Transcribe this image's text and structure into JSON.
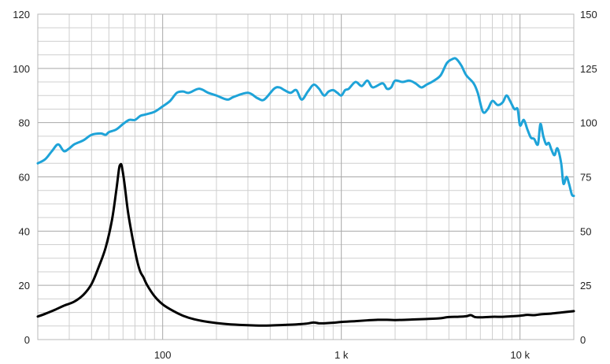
{
  "chart_data": {
    "type": "line",
    "x_scale": "log",
    "xlim": [
      20,
      20000
    ],
    "ylim_left": [
      0,
      120
    ],
    "ylim_right": [
      0,
      150
    ],
    "grid": true,
    "x_major_ticks": [
      {
        "value": 100,
        "label": "100"
      },
      {
        "value": 1000,
        "label": "1 k"
      },
      {
        "value": 10000,
        "label": "10 k"
      }
    ],
    "y_left_ticks": [
      {
        "value": 0,
        "label": "0"
      },
      {
        "value": 20,
        "label": "20"
      },
      {
        "value": 40,
        "label": "40"
      },
      {
        "value": 60,
        "label": "60"
      },
      {
        "value": 80,
        "label": "80"
      },
      {
        "value": 100,
        "label": "100"
      },
      {
        "value": 120,
        "label": "120"
      }
    ],
    "y_right_ticks": [
      {
        "value": 0,
        "label": "0"
      },
      {
        "value": 25,
        "label": "25"
      },
      {
        "value": 50,
        "label": "50"
      },
      {
        "value": 75,
        "label": "75"
      },
      {
        "value": 100,
        "label": "100"
      },
      {
        "value": 125,
        "label": "125"
      },
      {
        "value": 150,
        "label": "150"
      }
    ],
    "series": [
      {
        "color": "#1ea3d8",
        "axis": "left",
        "points": [
          [
            20,
            65
          ],
          [
            22,
            66.5
          ],
          [
            24,
            69.5
          ],
          [
            26,
            72
          ],
          [
            28,
            69.5
          ],
          [
            30,
            70.5
          ],
          [
            32,
            72
          ],
          [
            36,
            73.5
          ],
          [
            40,
            75.5
          ],
          [
            45,
            76
          ],
          [
            48,
            75.5
          ],
          [
            50,
            76.5
          ],
          [
            55,
            77.5
          ],
          [
            60,
            79.5
          ],
          [
            65,
            81
          ],
          [
            70,
            81
          ],
          [
            75,
            82.5
          ],
          [
            80,
            83
          ],
          [
            90,
            84
          ],
          [
            100,
            86
          ],
          [
            110,
            88
          ],
          [
            120,
            91
          ],
          [
            130,
            91.5
          ],
          [
            140,
            91
          ],
          [
            160,
            92.5
          ],
          [
            180,
            91
          ],
          [
            200,
            90
          ],
          [
            230,
            88.5
          ],
          [
            250,
            89.5
          ],
          [
            300,
            91
          ],
          [
            340,
            89
          ],
          [
            370,
            88.5
          ],
          [
            420,
            92.5
          ],
          [
            450,
            93
          ],
          [
            480,
            92
          ],
          [
            520,
            91
          ],
          [
            560,
            92
          ],
          [
            600,
            88.5
          ],
          [
            650,
            91.5
          ],
          [
            700,
            94
          ],
          [
            750,
            92.5
          ],
          [
            800,
            90
          ],
          [
            850,
            91.5
          ],
          [
            900,
            92
          ],
          [
            950,
            91
          ],
          [
            1000,
            90
          ],
          [
            1050,
            92
          ],
          [
            1100,
            92.5
          ],
          [
            1200,
            95
          ],
          [
            1300,
            93.5
          ],
          [
            1400,
            95.5
          ],
          [
            1500,
            93
          ],
          [
            1700,
            94.5
          ],
          [
            1800,
            92.5
          ],
          [
            1900,
            93
          ],
          [
            2000,
            95.5
          ],
          [
            2200,
            95
          ],
          [
            2400,
            95.5
          ],
          [
            2600,
            94.5
          ],
          [
            2800,
            93
          ],
          [
            3000,
            94
          ],
          [
            3300,
            95.5
          ],
          [
            3600,
            97.5
          ],
          [
            3900,
            102
          ],
          [
            4200,
            103.5
          ],
          [
            4400,
            103.5
          ],
          [
            4700,
            101
          ],
          [
            5000,
            97.5
          ],
          [
            5500,
            94.5
          ],
          [
            5800,
            91
          ],
          [
            6200,
            84
          ],
          [
            6600,
            85
          ],
          [
            7000,
            88
          ],
          [
            7500,
            86.5
          ],
          [
            8000,
            87.5
          ],
          [
            8400,
            90
          ],
          [
            8800,
            88
          ],
          [
            9300,
            85
          ],
          [
            9700,
            85
          ],
          [
            10000,
            79
          ],
          [
            10500,
            81
          ],
          [
            11000,
            77.5
          ],
          [
            11500,
            74.5
          ],
          [
            12000,
            74
          ],
          [
            12600,
            72
          ],
          [
            13000,
            79.5
          ],
          [
            13500,
            75
          ],
          [
            14000,
            72
          ],
          [
            14500,
            72.5
          ],
          [
            15000,
            70
          ],
          [
            15600,
            68
          ],
          [
            16200,
            70.5
          ],
          [
            17000,
            65
          ],
          [
            17500,
            57.5
          ],
          [
            18200,
            60
          ],
          [
            18800,
            57.5
          ],
          [
            19500,
            53.5
          ],
          [
            20000,
            53
          ]
        ]
      },
      {
        "color": "#000000",
        "axis": "left",
        "points": [
          [
            20,
            8.5
          ],
          [
            22,
            9.5
          ],
          [
            25,
            11
          ],
          [
            28,
            12.5
          ],
          [
            32,
            14
          ],
          [
            36,
            16.5
          ],
          [
            40,
            20.5
          ],
          [
            44,
            27
          ],
          [
            48,
            34
          ],
          [
            52,
            44
          ],
          [
            55,
            55
          ],
          [
            57,
            63
          ],
          [
            58,
            64.5
          ],
          [
            59,
            64
          ],
          [
            61,
            58
          ],
          [
            64,
            47
          ],
          [
            68,
            37
          ],
          [
            72,
            29
          ],
          [
            75,
            25
          ],
          [
            78,
            23
          ],
          [
            82,
            20
          ],
          [
            90,
            16
          ],
          [
            100,
            13
          ],
          [
            115,
            10.5
          ],
          [
            130,
            8.8
          ],
          [
            150,
            7.5
          ],
          [
            180,
            6.5
          ],
          [
            220,
            5.8
          ],
          [
            270,
            5.4
          ],
          [
            330,
            5.2
          ],
          [
            400,
            5.2
          ],
          [
            480,
            5.4
          ],
          [
            560,
            5.6
          ],
          [
            640,
            5.9
          ],
          [
            700,
            6.3
          ],
          [
            750,
            6
          ],
          [
            800,
            6
          ],
          [
            900,
            6.2
          ],
          [
            1000,
            6.5
          ],
          [
            1200,
            6.8
          ],
          [
            1400,
            7.1
          ],
          [
            1600,
            7.3
          ],
          [
            1800,
            7.3
          ],
          [
            2000,
            7.2
          ],
          [
            2500,
            7.4
          ],
          [
            3000,
            7.6
          ],
          [
            3500,
            7.8
          ],
          [
            4000,
            8.3
          ],
          [
            4500,
            8.4
          ],
          [
            5000,
            8.6
          ],
          [
            5300,
            9
          ],
          [
            5600,
            8.3
          ],
          [
            6000,
            8.2
          ],
          [
            7000,
            8.4
          ],
          [
            8000,
            8.4
          ],
          [
            9000,
            8.6
          ],
          [
            10000,
            8.8
          ],
          [
            11000,
            9.1
          ],
          [
            12000,
            9
          ],
          [
            13000,
            9.3
          ],
          [
            15000,
            9.6
          ],
          [
            17000,
            10
          ],
          [
            20000,
            10.5
          ]
        ]
      }
    ]
  }
}
